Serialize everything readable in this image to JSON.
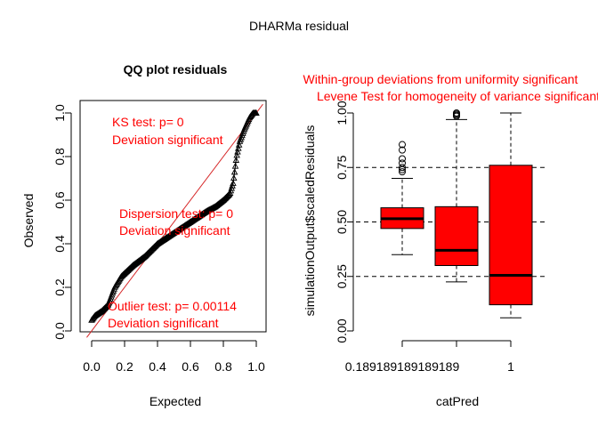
{
  "main_title": "DHARMa residual",
  "colors": {
    "red": "#ff0000",
    "qq_line": "#d62728",
    "text": "#000000"
  },
  "chart_data": [
    {
      "type": "scatter",
      "title": "QQ plot residuals",
      "xlabel": "Expected",
      "ylabel": "Observed",
      "xlim": [
        0,
        1
      ],
      "ylim": [
        0,
        1
      ],
      "xticks": [
        "0.0",
        "0.2",
        "0.4",
        "0.6",
        "0.8",
        "1.0"
      ],
      "yticks": [
        "0.0",
        "0.2",
        "0.4",
        "0.6",
        "0.8",
        "1.0"
      ],
      "curve": [
        [
          0.0,
          0.05
        ],
        [
          0.02,
          0.07
        ],
        [
          0.06,
          0.09
        ],
        [
          0.1,
          0.12
        ],
        [
          0.14,
          0.2
        ],
        [
          0.18,
          0.25
        ],
        [
          0.25,
          0.3
        ],
        [
          0.32,
          0.34
        ],
        [
          0.4,
          0.4
        ],
        [
          0.5,
          0.45
        ],
        [
          0.6,
          0.5
        ],
        [
          0.7,
          0.55
        ],
        [
          0.75,
          0.57
        ],
        [
          0.8,
          0.6
        ],
        [
          0.84,
          0.63
        ],
        [
          0.86,
          0.68
        ],
        [
          0.88,
          0.8
        ],
        [
          0.9,
          0.87
        ],
        [
          0.93,
          0.93
        ],
        [
          0.96,
          0.98
        ],
        [
          0.98,
          1.0
        ],
        [
          1.0,
          1.0
        ]
      ],
      "annotations": [
        {
          "lines": [
            "KS test: p= 0",
            "Deviation  significant"
          ]
        },
        {
          "lines": [
            "Dispersion test: p= 0",
            "Deviation  significant"
          ]
        },
        {
          "lines": [
            "Outlier test: p= 0.00114",
            "Deviation  significant"
          ]
        }
      ]
    },
    {
      "type": "box",
      "title_lines": [
        "Within-group deviations from uniformity significant",
        "Levene Test for homogeneity of variance significant"
      ],
      "xlabel": "catPred",
      "ylabel": "simulationOutput$scaledResiduals",
      "categories": [
        "0.189189189189189",
        "",
        "1"
      ],
      "ylim": [
        0,
        1
      ],
      "yticks": [
        "0.00",
        "0.25",
        "0.50",
        "0.75",
        "1.00"
      ],
      "hlines": [
        0.25,
        0.5,
        0.75
      ],
      "boxes": [
        {
          "q1": 0.47,
          "median": 0.515,
          "q3": 0.565,
          "whisker_low": 0.35,
          "whisker_high": 0.7,
          "outliers": [
            0.73,
            0.74,
            0.75,
            0.77,
            0.79,
            0.83,
            0.855
          ]
        },
        {
          "q1": 0.3,
          "median": 0.37,
          "q3": 0.57,
          "whisker_low": 0.225,
          "whisker_high": 0.97,
          "outliers": [
            0.985,
            0.99,
            0.995,
            1.0
          ]
        },
        {
          "q1": 0.12,
          "median": 0.255,
          "q3": 0.76,
          "whisker_low": 0.06,
          "whisker_high": 1.0,
          "outliers": []
        }
      ]
    }
  ]
}
